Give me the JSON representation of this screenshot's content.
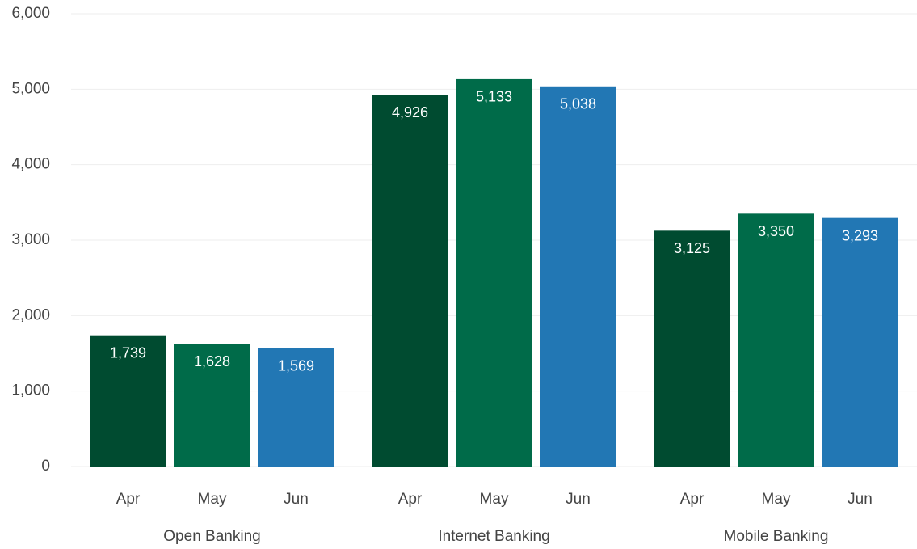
{
  "chart_data": {
    "type": "bar",
    "categories": [
      "Open Banking",
      "Internet Banking",
      "Mobile Banking"
    ],
    "series": [
      {
        "name": "Apr",
        "color": "#004b30",
        "values": [
          1739,
          4926,
          3125
        ],
        "value_labels": [
          "1,739",
          "4,926",
          "3,125"
        ]
      },
      {
        "name": "May",
        "color": "#006b49",
        "values": [
          1628,
          5133,
          3350
        ],
        "value_labels": [
          "1,628",
          "5,133",
          "3,350"
        ]
      },
      {
        "name": "Jun",
        "color": "#2277b4",
        "values": [
          1569,
          5038,
          3293
        ],
        "value_labels": [
          "1,569",
          "5,038",
          "3,293"
        ]
      }
    ],
    "ylim": [
      0,
      6000
    ],
    "yticks": [
      0,
      {
        "value": 1000,
        "label": "1,000"
      },
      {
        "value": 2000,
        "label": "2,000"
      },
      {
        "value": 3000,
        "label": "3,000"
      },
      {
        "value": 4000,
        "label": "4,000"
      },
      {
        "value": 5000,
        "label": "5,000"
      },
      {
        "value": 6000,
        "label": "6,000"
      }
    ],
    "grid": true
  }
}
